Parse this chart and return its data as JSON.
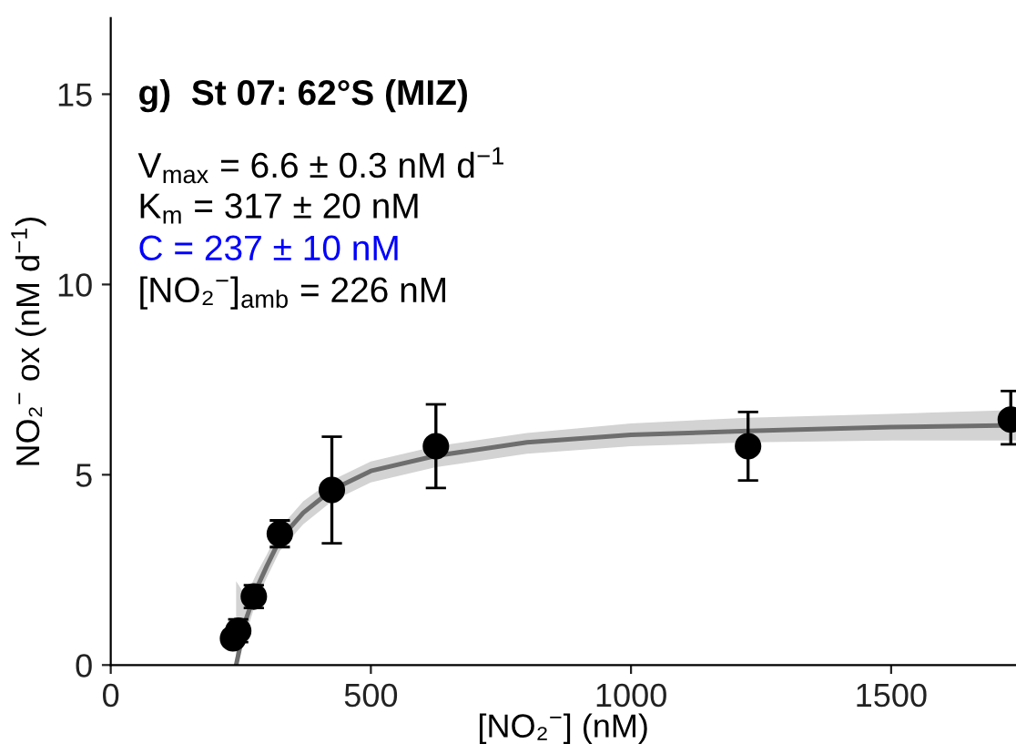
{
  "chart_data": {
    "type": "scatter",
    "title": "g)  St 07: 62°S (MIZ)",
    "xlabel": "[NO₂$^{−}$] (nM)",
    "ylabel": "NO₂$^{−}$ ox (nM d$^{−1}$)",
    "xlim": [
      0,
      1740
    ],
    "xticks": [
      0,
      500,
      1000,
      1500
    ],
    "ylim": [
      0,
      17
    ],
    "yticks": [
      0,
      5,
      10,
      15
    ],
    "grid": false,
    "legend": false,
    "series": [
      {
        "type": "line",
        "color": "#6e6e6e",
        "x": [
          241,
          260,
          280,
          300,
          325,
          370,
          425,
          500,
          625,
          800,
          1000,
          1225,
          1500,
          1740
        ],
        "values": [
          0,
          1.2,
          2.0,
          2.6,
          3.3,
          4.0,
          4.6,
          5.1,
          5.5,
          5.85,
          6.05,
          6.15,
          6.25,
          6.3
        ],
        "lower": [
          0,
          0.8,
          1.7,
          2.3,
          3.0,
          3.7,
          4.3,
          4.8,
          5.2,
          5.55,
          5.75,
          5.85,
          5.9,
          5.9
        ],
        "upper": [
          2.2,
          1.8,
          2.4,
          2.9,
          3.6,
          4.3,
          4.85,
          5.35,
          5.75,
          6.1,
          6.35,
          6.5,
          6.6,
          6.7
        ]
      },
      {
        "color": "#000000",
        "marker": "circle",
        "x": [
          235,
          245,
          275,
          325,
          425,
          625,
          1225,
          1730
        ],
        "values": [
          0.7,
          0.9,
          1.8,
          3.45,
          4.6,
          5.75,
          5.75,
          6.45
        ],
        "errors": [
          0.2,
          0.3,
          0.3,
          0.35,
          1.4,
          1.1,
          0.9,
          [
            5.8,
            7.2
          ]
        ]
      }
    ],
    "annotations": [
      "V$_{max}$ = 6.6 ± 0.3 nM d$^{−1}$",
      "K$_{m}$ = 317 ± 20 nM",
      "C = 237 ± 10 nM",
      "[NO₂$^{−}$]$_{amb}$ = 226 nM"
    ]
  }
}
